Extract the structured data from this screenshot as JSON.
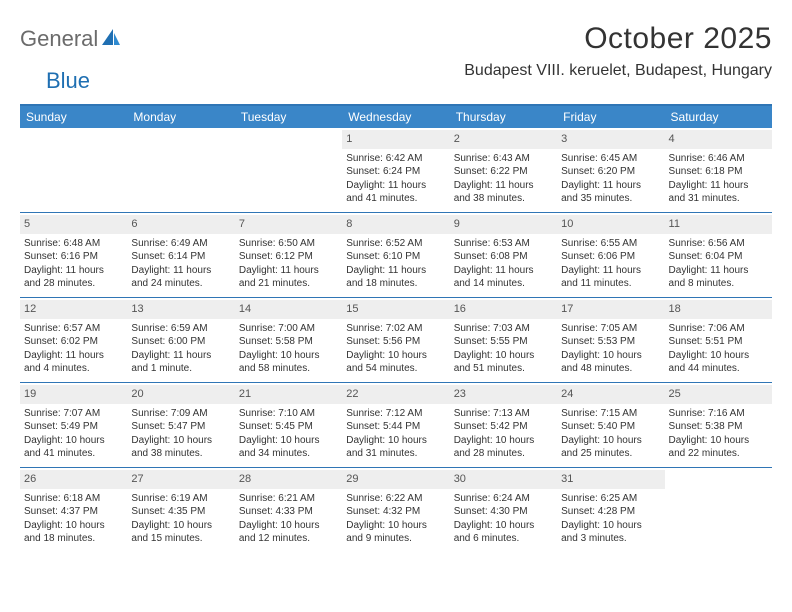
{
  "brand": {
    "text1": "General",
    "text2": "Blue"
  },
  "title": "October 2025",
  "location": "Budapest VIII. keruelet, Budapest, Hungary",
  "colors": {
    "header_bg": "#3a86c8",
    "header_border": "#2f75b5",
    "daynum_bg": "#eeeeee",
    "text": "#333333",
    "logo_gray": "#6b6b6b",
    "logo_blue": "#1f6fb2"
  },
  "day_names": [
    "Sunday",
    "Monday",
    "Tuesday",
    "Wednesday",
    "Thursday",
    "Friday",
    "Saturday"
  ],
  "weeks": [
    [
      null,
      null,
      null,
      {
        "n": "1",
        "sr": "Sunrise: 6:42 AM",
        "ss": "Sunset: 6:24 PM",
        "d1": "Daylight: 11 hours",
        "d2": "and 41 minutes."
      },
      {
        "n": "2",
        "sr": "Sunrise: 6:43 AM",
        "ss": "Sunset: 6:22 PM",
        "d1": "Daylight: 11 hours",
        "d2": "and 38 minutes."
      },
      {
        "n": "3",
        "sr": "Sunrise: 6:45 AM",
        "ss": "Sunset: 6:20 PM",
        "d1": "Daylight: 11 hours",
        "d2": "and 35 minutes."
      },
      {
        "n": "4",
        "sr": "Sunrise: 6:46 AM",
        "ss": "Sunset: 6:18 PM",
        "d1": "Daylight: 11 hours",
        "d2": "and 31 minutes."
      }
    ],
    [
      {
        "n": "5",
        "sr": "Sunrise: 6:48 AM",
        "ss": "Sunset: 6:16 PM",
        "d1": "Daylight: 11 hours",
        "d2": "and 28 minutes."
      },
      {
        "n": "6",
        "sr": "Sunrise: 6:49 AM",
        "ss": "Sunset: 6:14 PM",
        "d1": "Daylight: 11 hours",
        "d2": "and 24 minutes."
      },
      {
        "n": "7",
        "sr": "Sunrise: 6:50 AM",
        "ss": "Sunset: 6:12 PM",
        "d1": "Daylight: 11 hours",
        "d2": "and 21 minutes."
      },
      {
        "n": "8",
        "sr": "Sunrise: 6:52 AM",
        "ss": "Sunset: 6:10 PM",
        "d1": "Daylight: 11 hours",
        "d2": "and 18 minutes."
      },
      {
        "n": "9",
        "sr": "Sunrise: 6:53 AM",
        "ss": "Sunset: 6:08 PM",
        "d1": "Daylight: 11 hours",
        "d2": "and 14 minutes."
      },
      {
        "n": "10",
        "sr": "Sunrise: 6:55 AM",
        "ss": "Sunset: 6:06 PM",
        "d1": "Daylight: 11 hours",
        "d2": "and 11 minutes."
      },
      {
        "n": "11",
        "sr": "Sunrise: 6:56 AM",
        "ss": "Sunset: 6:04 PM",
        "d1": "Daylight: 11 hours",
        "d2": "and 8 minutes."
      }
    ],
    [
      {
        "n": "12",
        "sr": "Sunrise: 6:57 AM",
        "ss": "Sunset: 6:02 PM",
        "d1": "Daylight: 11 hours",
        "d2": "and 4 minutes."
      },
      {
        "n": "13",
        "sr": "Sunrise: 6:59 AM",
        "ss": "Sunset: 6:00 PM",
        "d1": "Daylight: 11 hours",
        "d2": "and 1 minute."
      },
      {
        "n": "14",
        "sr": "Sunrise: 7:00 AM",
        "ss": "Sunset: 5:58 PM",
        "d1": "Daylight: 10 hours",
        "d2": "and 58 minutes."
      },
      {
        "n": "15",
        "sr": "Sunrise: 7:02 AM",
        "ss": "Sunset: 5:56 PM",
        "d1": "Daylight: 10 hours",
        "d2": "and 54 minutes."
      },
      {
        "n": "16",
        "sr": "Sunrise: 7:03 AM",
        "ss": "Sunset: 5:55 PM",
        "d1": "Daylight: 10 hours",
        "d2": "and 51 minutes."
      },
      {
        "n": "17",
        "sr": "Sunrise: 7:05 AM",
        "ss": "Sunset: 5:53 PM",
        "d1": "Daylight: 10 hours",
        "d2": "and 48 minutes."
      },
      {
        "n": "18",
        "sr": "Sunrise: 7:06 AM",
        "ss": "Sunset: 5:51 PM",
        "d1": "Daylight: 10 hours",
        "d2": "and 44 minutes."
      }
    ],
    [
      {
        "n": "19",
        "sr": "Sunrise: 7:07 AM",
        "ss": "Sunset: 5:49 PM",
        "d1": "Daylight: 10 hours",
        "d2": "and 41 minutes."
      },
      {
        "n": "20",
        "sr": "Sunrise: 7:09 AM",
        "ss": "Sunset: 5:47 PM",
        "d1": "Daylight: 10 hours",
        "d2": "and 38 minutes."
      },
      {
        "n": "21",
        "sr": "Sunrise: 7:10 AM",
        "ss": "Sunset: 5:45 PM",
        "d1": "Daylight: 10 hours",
        "d2": "and 34 minutes."
      },
      {
        "n": "22",
        "sr": "Sunrise: 7:12 AM",
        "ss": "Sunset: 5:44 PM",
        "d1": "Daylight: 10 hours",
        "d2": "and 31 minutes."
      },
      {
        "n": "23",
        "sr": "Sunrise: 7:13 AM",
        "ss": "Sunset: 5:42 PM",
        "d1": "Daylight: 10 hours",
        "d2": "and 28 minutes."
      },
      {
        "n": "24",
        "sr": "Sunrise: 7:15 AM",
        "ss": "Sunset: 5:40 PM",
        "d1": "Daylight: 10 hours",
        "d2": "and 25 minutes."
      },
      {
        "n": "25",
        "sr": "Sunrise: 7:16 AM",
        "ss": "Sunset: 5:38 PM",
        "d1": "Daylight: 10 hours",
        "d2": "and 22 minutes."
      }
    ],
    [
      {
        "n": "26",
        "sr": "Sunrise: 6:18 AM",
        "ss": "Sunset: 4:37 PM",
        "d1": "Daylight: 10 hours",
        "d2": "and 18 minutes."
      },
      {
        "n": "27",
        "sr": "Sunrise: 6:19 AM",
        "ss": "Sunset: 4:35 PM",
        "d1": "Daylight: 10 hours",
        "d2": "and 15 minutes."
      },
      {
        "n": "28",
        "sr": "Sunrise: 6:21 AM",
        "ss": "Sunset: 4:33 PM",
        "d1": "Daylight: 10 hours",
        "d2": "and 12 minutes."
      },
      {
        "n": "29",
        "sr": "Sunrise: 6:22 AM",
        "ss": "Sunset: 4:32 PM",
        "d1": "Daylight: 10 hours",
        "d2": "and 9 minutes."
      },
      {
        "n": "30",
        "sr": "Sunrise: 6:24 AM",
        "ss": "Sunset: 4:30 PM",
        "d1": "Daylight: 10 hours",
        "d2": "and 6 minutes."
      },
      {
        "n": "31",
        "sr": "Sunrise: 6:25 AM",
        "ss": "Sunset: 4:28 PM",
        "d1": "Daylight: 10 hours",
        "d2": "and 3 minutes."
      },
      null
    ]
  ]
}
